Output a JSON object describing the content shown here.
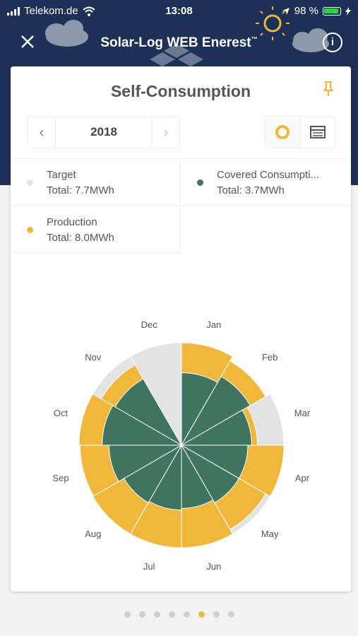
{
  "status_bar": {
    "carrier": "Telekom.de",
    "time": "13:08",
    "battery": "98 %"
  },
  "nav": {
    "title": "Solar-Log WEB Enerest",
    "trademark": "™",
    "close_icon": "close-icon",
    "info_icon": "info-icon"
  },
  "card": {
    "title": "Self-Consumption",
    "year": "2018",
    "prev_label": "‹",
    "next_label": "›",
    "pin_icon": "pin-icon",
    "view_icons": [
      "donut-chart-icon",
      "table-icon"
    ]
  },
  "legend": [
    {
      "name": "Target",
      "total": "Total: 7.7MWh",
      "color": "#e3e3e3"
    },
    {
      "name": "Covered Consumpti...",
      "total": "Total: 3.7MWh",
      "color": "#3f7460"
    },
    {
      "name": "Production",
      "total": "Total: 8.0MWh",
      "color": "#f0b73d"
    }
  ],
  "chart_data": {
    "type": "polar-area",
    "categories": [
      "Jan",
      "Feb",
      "Mar",
      "Apr",
      "May",
      "Jun",
      "Jul",
      "Aug",
      "Sep",
      "Oct",
      "Nov",
      "Dec"
    ],
    "scale_max": 1.0,
    "series": [
      {
        "name": "Target",
        "color": "#e3e3e3",
        "values": [
          1.0,
          0.83,
          1.0,
          1.0,
          1.0,
          1.0,
          1.0,
          1.0,
          1.0,
          1.0,
          1.0,
          1.0
        ]
      },
      {
        "name": "Production",
        "color": "#f0b73d",
        "values": [
          1.0,
          0.9,
          0.55,
          1.0,
          0.9,
          1.0,
          1.0,
          1.0,
          0.98,
          1.0,
          0.82,
          0.0
        ]
      },
      {
        "name": "Covered Consumption",
        "color": "#3f7460",
        "values": [
          0.5,
          0.6,
          0.47,
          0.42,
          0.42,
          0.38,
          0.4,
          0.42,
          0.5,
          0.6,
          0.56,
          0.0
        ]
      }
    ]
  },
  "pager": {
    "count": 8,
    "active": 5
  }
}
